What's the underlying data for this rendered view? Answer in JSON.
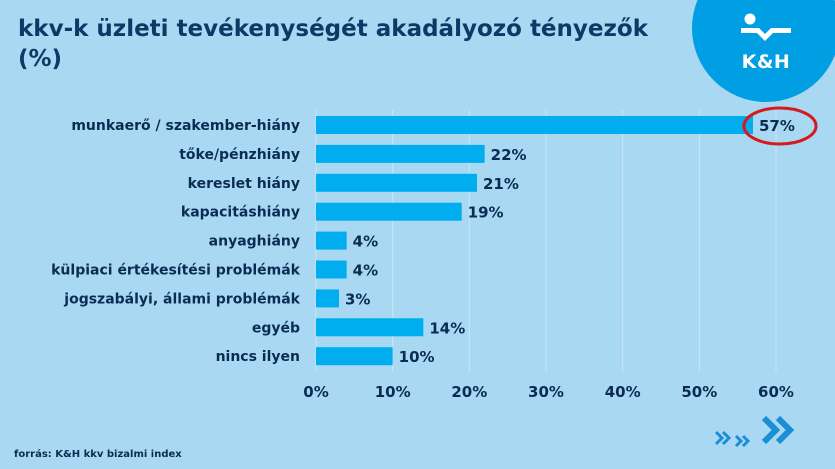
{
  "title": "kkv-k üzleti tevékenységét akadályozó tényezők (%)",
  "logo": {
    "text": "K&H",
    "icon": "kh-logo-icon",
    "color": "#009fe3"
  },
  "source": "forrás: K&H kkv bizalmi index",
  "colors": {
    "bar": "#00aeef",
    "text": "#0b2c52",
    "highlight": "#d7191c",
    "background": "#a9d8f3"
  },
  "chart_data": {
    "type": "bar",
    "orientation": "horizontal",
    "title": "kkv-k üzleti tevékenységét akadályozó tényezők (%)",
    "categories": [
      "munkaerő / szakember-hiány",
      "tőke/pénzhiány",
      "kereslet hiány",
      "kapacitáshiány",
      "anyaghiány",
      "külpiaci értékesítési problémák",
      "jogszabályi, állami problémák",
      "egyéb",
      "nincs ilyen"
    ],
    "values": [
      57,
      22,
      21,
      19,
      4,
      4,
      3,
      14,
      10
    ],
    "value_labels": [
      "57%",
      "22%",
      "21%",
      "19%",
      "4%",
      "4%",
      "3%",
      "14%",
      "10%"
    ],
    "xlim": [
      0,
      60
    ],
    "x_ticks": [
      0,
      10,
      20,
      30,
      40,
      50,
      60
    ],
    "x_tick_labels": [
      "0%",
      "10%",
      "20%",
      "30%",
      "40%",
      "50%",
      "60%"
    ],
    "grid": "vertical",
    "highlighted_category_index": 0,
    "highlight_style": "red ellipse around value label"
  }
}
